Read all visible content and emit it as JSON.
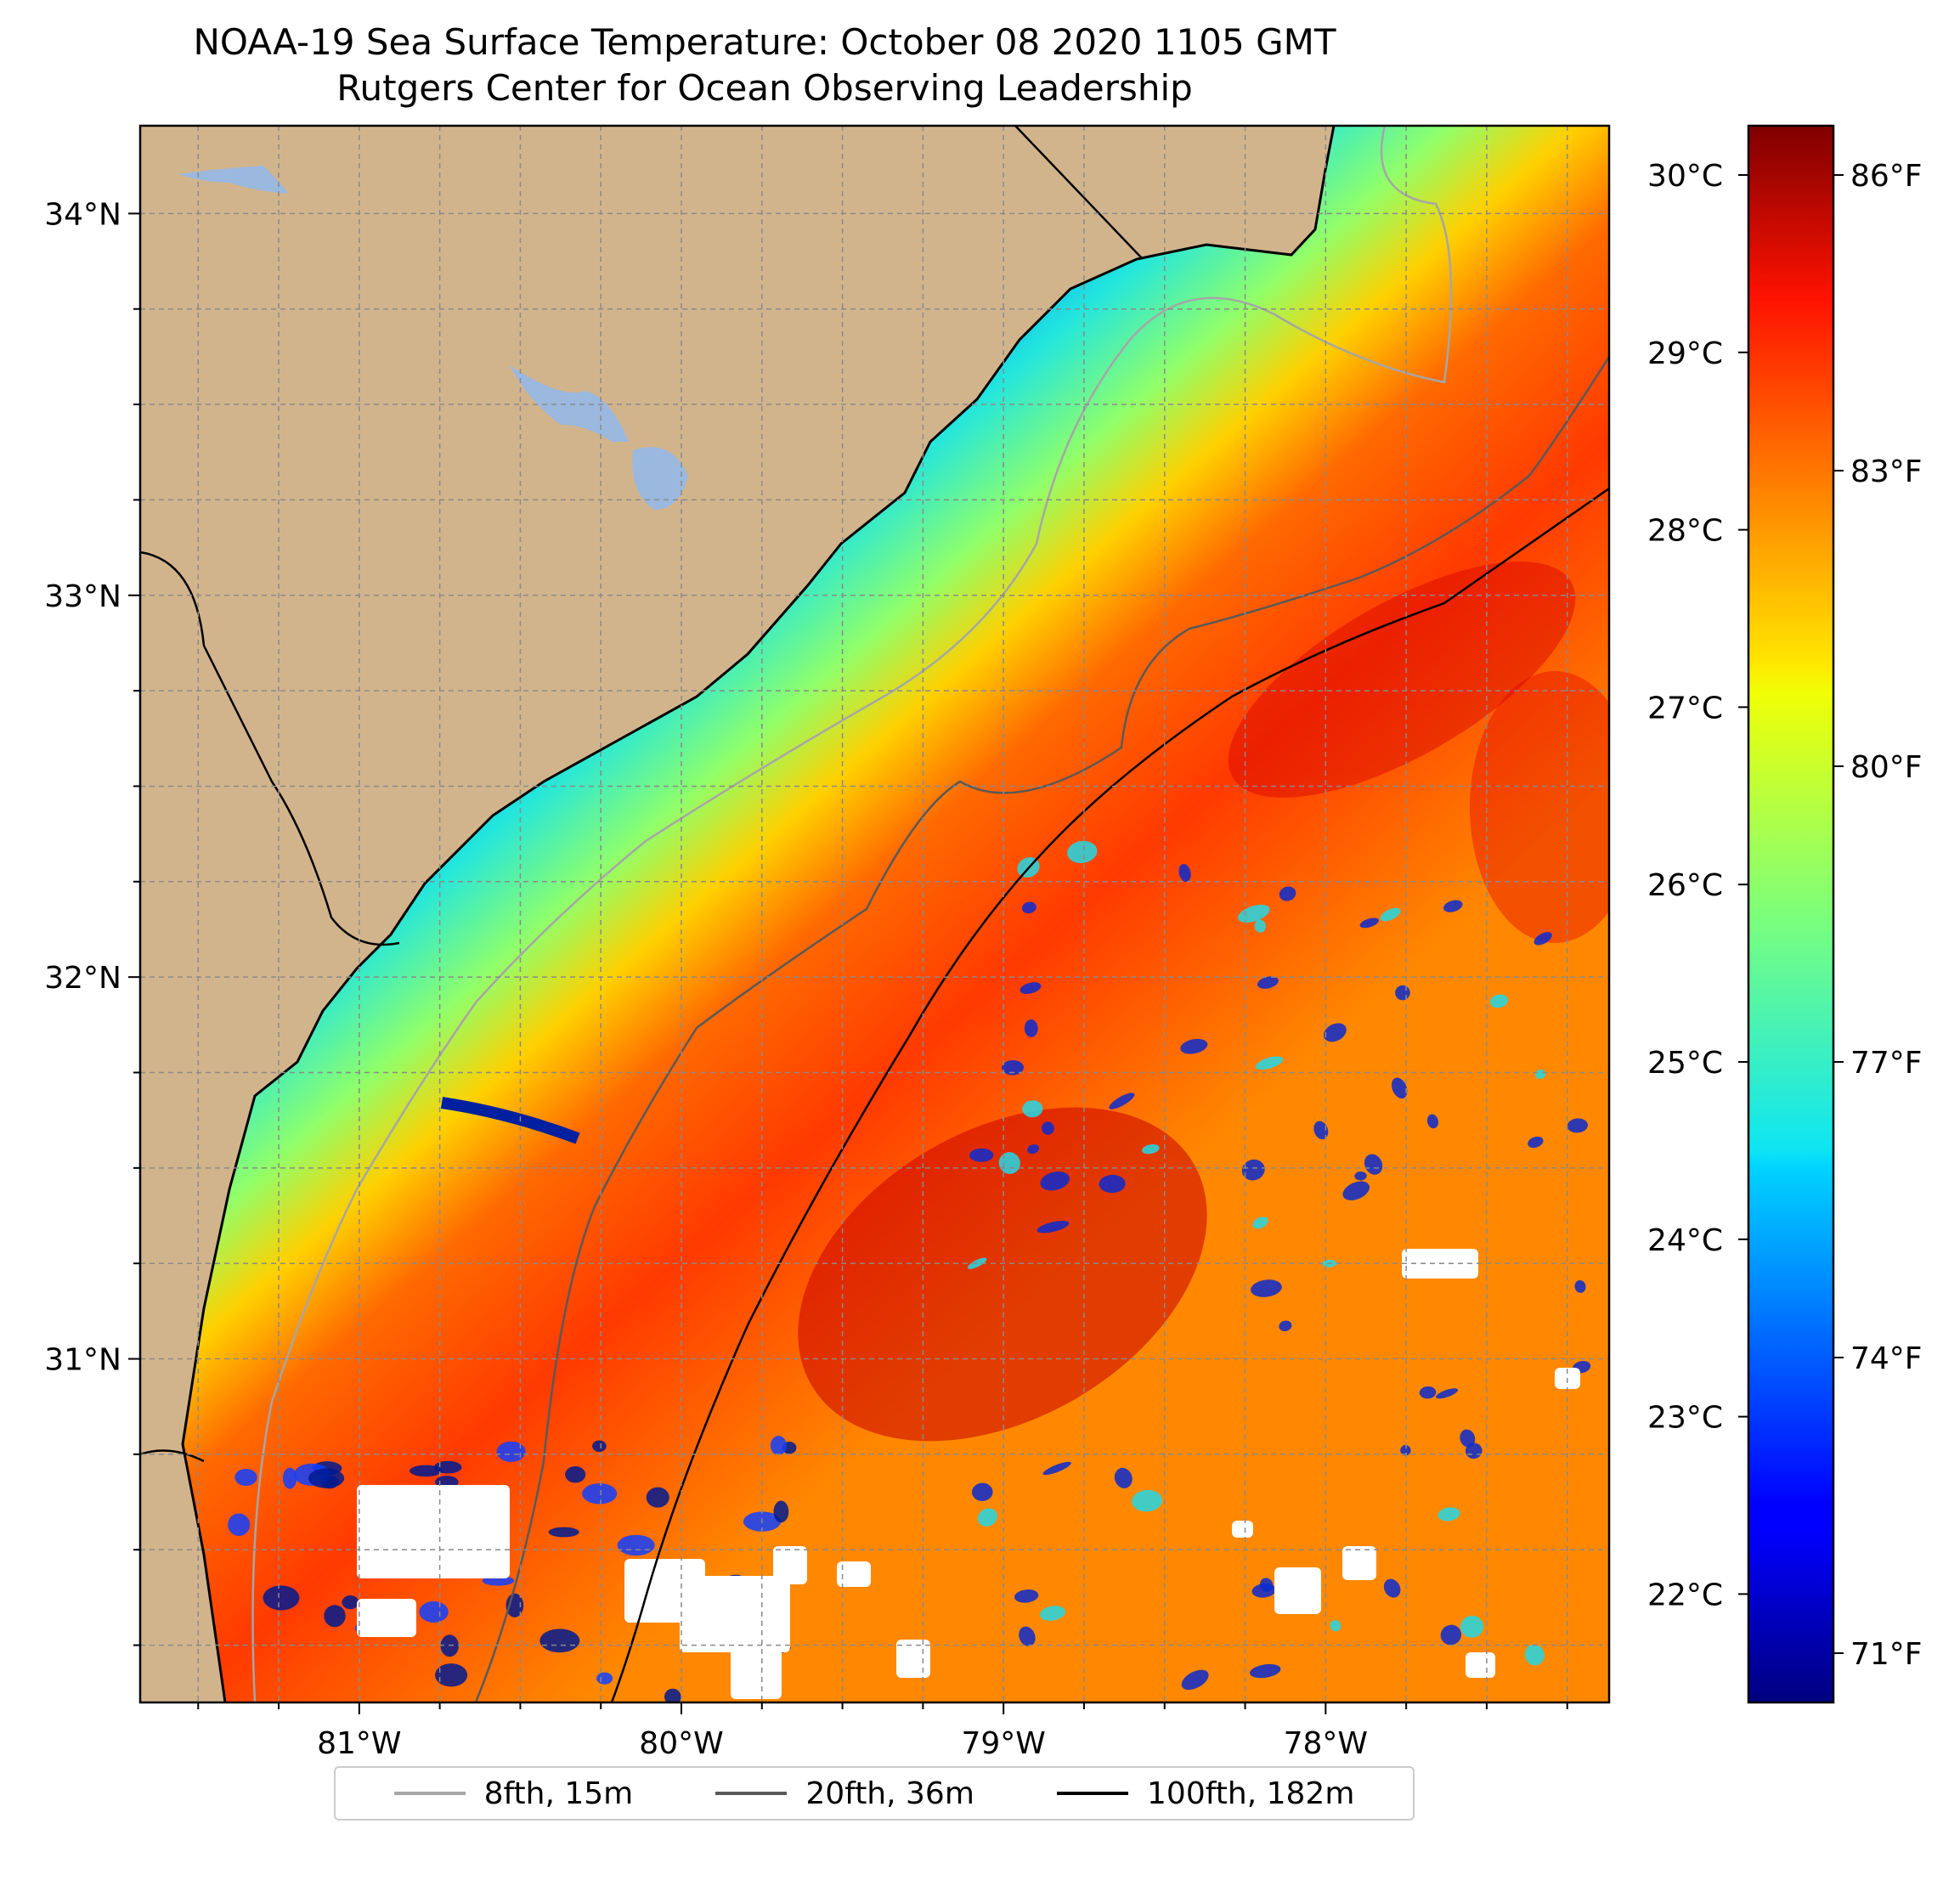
{
  "title": {
    "line1": "NOAA-19 Sea Surface Temperature: October 08 2020 1105 GMT",
    "line2": "Rutgers Center for Ocean Observing Leadership"
  },
  "map": {
    "land_color": "#d2b48c",
    "lake_color": "#9bb8df",
    "coast_color": "#000000",
    "grid": true,
    "lon_labels": [
      "81°W",
      "80°W",
      "79°W",
      "78°W"
    ],
    "lat_labels": [
      "34°N",
      "33°N",
      "32°N",
      "31°N"
    ],
    "lon_range": [
      -81.68,
      -77.12
    ],
    "lat_range": [
      30.1,
      34.23
    ]
  },
  "colorbar": {
    "colormap": "jet",
    "celsius_labels": [
      "30°C",
      "29°C",
      "28°C",
      "27°C",
      "26°C",
      "25°C",
      "24°C",
      "23°C",
      "22°C"
    ],
    "fahrenheit_labels": [
      "86°F",
      "83°F",
      "80°F",
      "77°F",
      "74°F",
      "71°F"
    ],
    "range_f": [
      70.5,
      86.5
    ]
  },
  "legend": {
    "items": [
      {
        "label": "8fth, 15m",
        "color": "#a6a6a6"
      },
      {
        "label": "20fth, 36m",
        "color": "#595959"
      },
      {
        "label": "100fth, 182m",
        "color": "#000000"
      }
    ]
  }
}
